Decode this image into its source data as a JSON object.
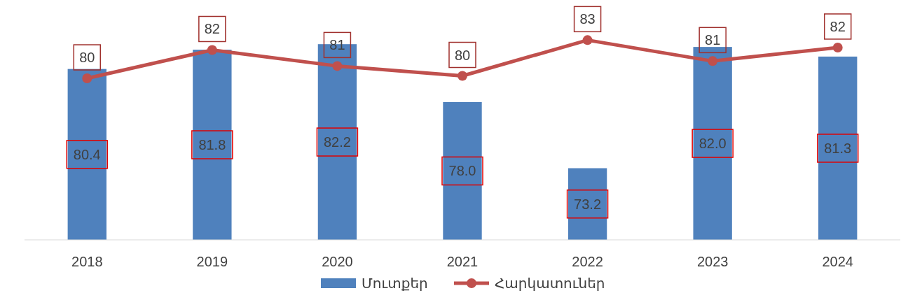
{
  "chart_data": {
    "type": "bar",
    "categories": [
      "2018",
      "2019",
      "2020",
      "2021",
      "2022",
      "2023",
      "2024"
    ],
    "series": [
      {
        "name": "Մուտքեր",
        "color": "#4f81bd",
        "values": [
          80.4,
          81.8,
          82.2,
          78.0,
          73.2,
          82.0,
          81.3
        ],
        "value_labels": [
          "80.4",
          "81.8",
          "82.2",
          "78.0",
          "73.2",
          "82.0",
          "81.3"
        ]
      },
      {
        "name": "Հարկատուներ",
        "type": "line",
        "axis": "y2",
        "color": "#c0504d",
        "marker": "circle",
        "values": [
          79.9,
          82.2,
          80.9,
          80.1,
          83.0,
          81.3,
          82.4
        ],
        "value_labels": [
          "80",
          "82",
          "81",
          "80",
          "83",
          "81",
          "82"
        ]
      }
    ],
    "data_labels": true,
    "ylim": [
      68,
      85
    ],
    "y2lim": [
      66.8,
      85.8
    ],
    "tick_labels": "x",
    "legend": "bottom"
  }
}
